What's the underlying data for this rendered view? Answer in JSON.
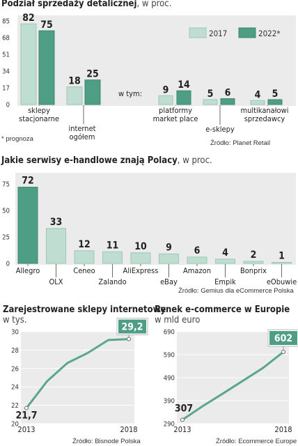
{
  "colors": {
    "c2017": "#bfddd0",
    "c2017_stroke": "#9cc8b4",
    "c2022": "#4e9e86",
    "c2022_stroke": "#3d8670",
    "panel_bg": "#ebebeb",
    "line": "#5aa68e",
    "grid": "#d8d8d8",
    "callout_bg": "#4e9e86"
  },
  "chart1": {
    "title": "Podział sprzedaży detalicznej",
    "unit": ", w proc.",
    "note": "* prognoza",
    "source": "Źródło: Planet Retail",
    "w_tym": "w tym:",
    "legend": [
      "2017",
      "2022*"
    ]
  },
  "chart2": {
    "title": "Jakie serwisy e-handlowe znają Polacy",
    "unit": ", w proc.",
    "source": "Źródło: Gemius dla eCommerce Polska"
  },
  "chart3": {
    "title": "Zarejestrowane sklepy internetowe",
    "unit": "w tys.",
    "source": "Źródło: Bisnode Polska"
  },
  "chart4": {
    "title": "Rynek e-commerce w Europie",
    "unit": "w mld euro",
    "source": "Źródło: Ecommerce Europe"
  },
  "chart_data": [
    {
      "type": "bar",
      "title": "Podział sprzedaży detalicznej",
      "ylabel": "w proc.",
      "ylim": [
        0,
        85
      ],
      "yticks": [
        0,
        17,
        34,
        51,
        68,
        85
      ],
      "categories": [
        "sklepy stacjonarne",
        "internet ogółem",
        "platformy market place",
        "e-sklepy",
        "multikanałowi sprzedawcy"
      ],
      "series": [
        {
          "name": "2017",
          "values": [
            82,
            18,
            9,
            5,
            4
          ]
        },
        {
          "name": "2022*",
          "values": [
            75,
            25,
            14,
            6,
            5
          ]
        }
      ],
      "legend": "top-right",
      "grid": false
    },
    {
      "type": "bar",
      "title": "Jakie serwisy e-handlowe znają Polacy",
      "ylabel": "w proc.",
      "ylim": [
        0,
        75
      ],
      "yticks": [
        0,
        25,
        50,
        75
      ],
      "categories": [
        "Allegro",
        "OLX",
        "Ceneo",
        "Zalando",
        "AliExpress",
        "eBay",
        "Amazon",
        "Empik",
        "Bonprix",
        "eObuwie"
      ],
      "values": [
        72,
        33,
        12,
        11,
        10,
        9,
        6,
        4,
        2,
        1
      ],
      "grid": false
    },
    {
      "type": "line",
      "title": "Zarejestrowane sklepy internetowe",
      "ylabel": "w tys.",
      "x": [
        2013,
        2014,
        2015,
        2016,
        2017,
        2018
      ],
      "y": [
        21.7,
        24.6,
        26.6,
        27.7,
        29.1,
        29.2
      ],
      "xticks": [
        "2013",
        "2018"
      ],
      "ylim": [
        20,
        30
      ],
      "yticks": [
        20,
        22,
        24,
        26,
        28,
        30
      ],
      "labels": {
        "first": "21,7",
        "last": "29,2"
      },
      "grid": true
    },
    {
      "type": "line",
      "title": "Rynek e-commerce w Europie",
      "ylabel": "w mld euro",
      "x": [
        2013,
        2014,
        2015,
        2016,
        2017,
        2018
      ],
      "y": [
        307,
        366,
        421,
        477,
        533,
        602
      ],
      "xticks": [
        "2013",
        "2018"
      ],
      "ylim": [
        290,
        690
      ],
      "yticks": [
        290,
        390,
        490,
        590,
        690
      ],
      "labels": {
        "first": "307",
        "last": "602"
      },
      "grid": true
    }
  ]
}
